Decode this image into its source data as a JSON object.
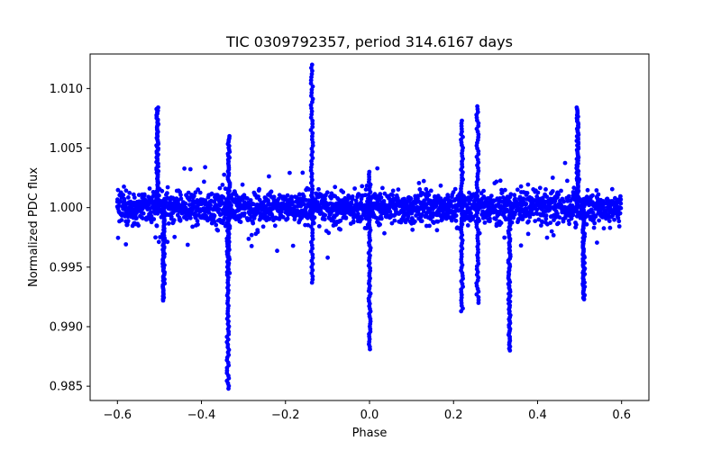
{
  "chart_data": {
    "type": "scatter",
    "title": "TIC 0309792357, period 314.6167 days",
    "xlabel": "Phase",
    "ylabel": "Normalized PDC flux",
    "xlim": [
      -0.665,
      0.665
    ],
    "ylim": [
      0.9838,
      1.0129
    ],
    "xticks": [
      -0.6,
      -0.4,
      -0.2,
      0.0,
      0.2,
      0.4,
      0.6
    ],
    "xtick_labels": [
      "−0.6",
      "−0.4",
      "−0.2",
      "0.0",
      "0.2",
      "0.4",
      "0.6"
    ],
    "yticks": [
      0.985,
      0.99,
      0.995,
      1.0,
      1.005,
      1.01
    ],
    "ytick_labels": [
      "0.985",
      "0.990",
      "0.995",
      "1.000",
      "1.005",
      "1.010"
    ],
    "grid": false,
    "marker_color": "#0000ff",
    "baseline": 1.0,
    "noise_band_width": 0.0025,
    "phase_range": [
      -0.6,
      0.6
    ],
    "features": [
      {
        "x": -0.505,
        "y_min": 0.9995,
        "y_max": 1.0084
      },
      {
        "x": -0.49,
        "y_min": 0.9922,
        "y_max": 1.0005
      },
      {
        "x": -0.337,
        "y_min": 0.9848,
        "y_max": 1.0
      },
      {
        "x": -0.335,
        "y_min": 0.9945,
        "y_max": 1.006
      },
      {
        "x": -0.137,
        "y_min": 0.9937,
        "y_max": 1.012
      },
      {
        "x": 0.0,
        "y_min": 0.9881,
        "y_max": 1.003
      },
      {
        "x": 0.22,
        "y_min": 0.9913,
        "y_max": 1.0073
      },
      {
        "x": 0.257,
        "y_min": 0.992,
        "y_max": 1.0085
      },
      {
        "x": 0.333,
        "y_min": 0.988,
        "y_max": 0.9995
      },
      {
        "x": 0.495,
        "y_min": 0.9995,
        "y_max": 1.0084
      },
      {
        "x": 0.51,
        "y_min": 0.9923,
        "y_max": 1.0005
      }
    ]
  }
}
